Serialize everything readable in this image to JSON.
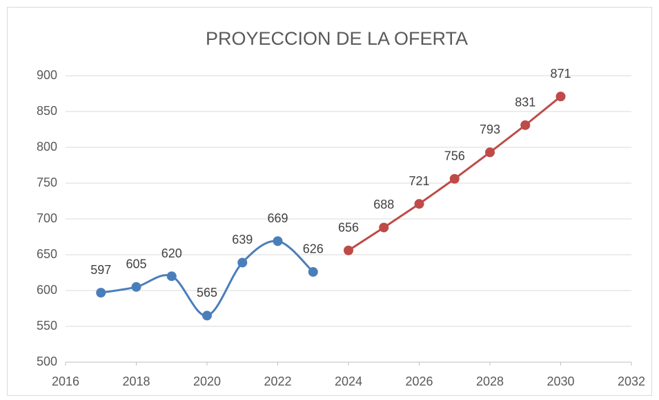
{
  "chart_data": {
    "type": "scatter",
    "title": "PROYECCION DE LA OFERTA",
    "series": [
      {
        "color": "#4a7ebb",
        "smooth": true,
        "x": [
          2017,
          2018,
          2019,
          2020,
          2021,
          2022,
          2023
        ],
        "values": [
          597,
          605,
          620,
          565,
          639,
          669,
          626
        ]
      },
      {
        "color": "#be4b48",
        "smooth": false,
        "x": [
          2024,
          2025,
          2026,
          2027,
          2028,
          2029,
          2030
        ],
        "values": [
          656,
          688,
          721,
          756,
          793,
          831,
          871
        ]
      }
    ],
    "xlim": [
      2016,
      2032
    ],
    "xticks": [
      2016,
      2018,
      2020,
      2022,
      2024,
      2026,
      2028,
      2030,
      2032
    ],
    "ylim": [
      500,
      900
    ],
    "yticks": [
      500,
      550,
      600,
      650,
      700,
      750,
      800,
      850,
      900
    ],
    "grid": true
  }
}
